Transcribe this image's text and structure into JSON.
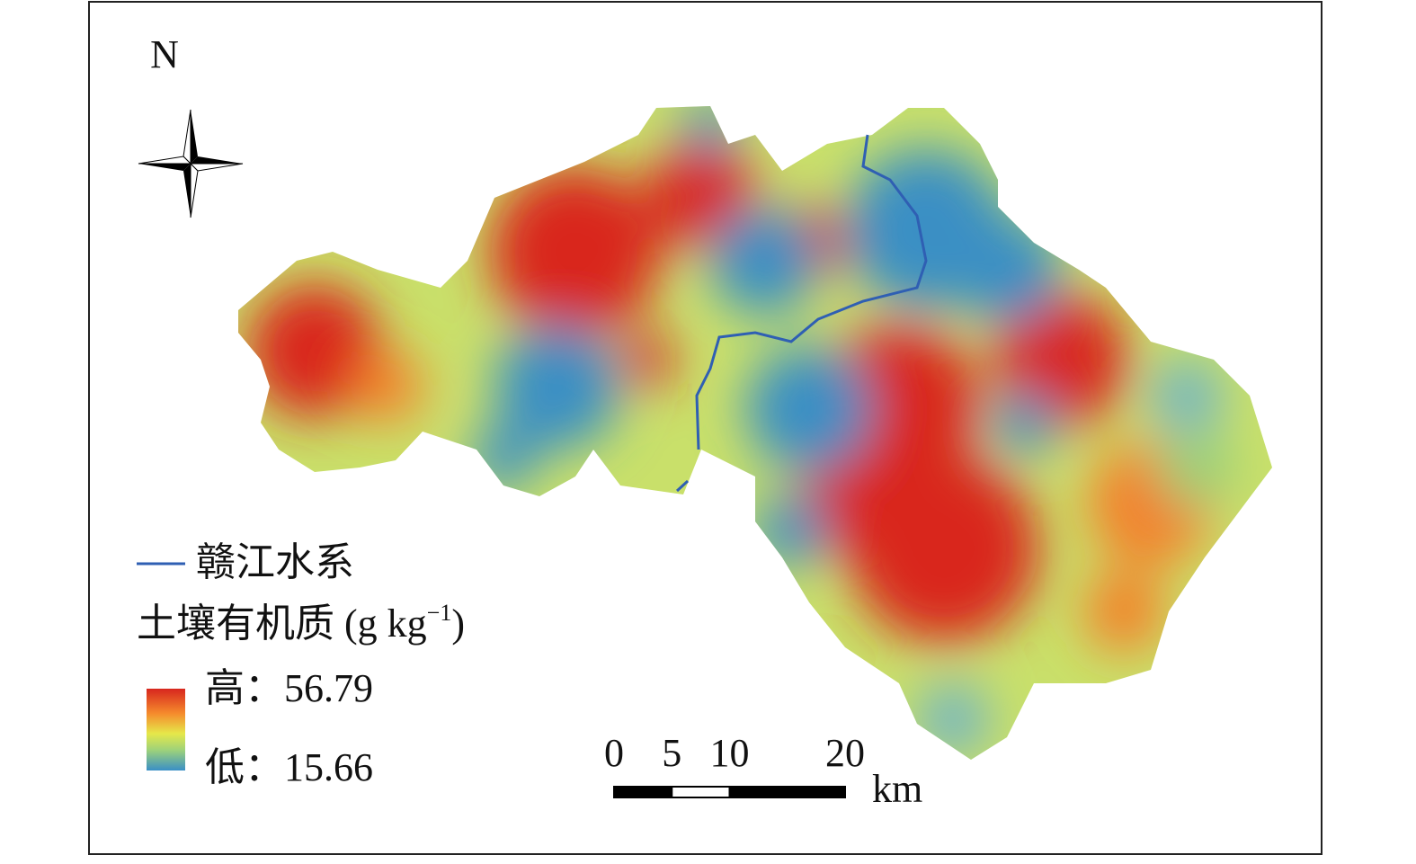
{
  "north_label": "N",
  "legend": {
    "river": "赣江水系",
    "title_main": "土壤有机质 (g kg",
    "title_sup": "−1",
    "title_end": ")",
    "high": "高：56.79",
    "low": "低：15.66"
  },
  "scale_bar": {
    "ticks": [
      0,
      5,
      10,
      20
    ],
    "unit": "km"
  }
}
